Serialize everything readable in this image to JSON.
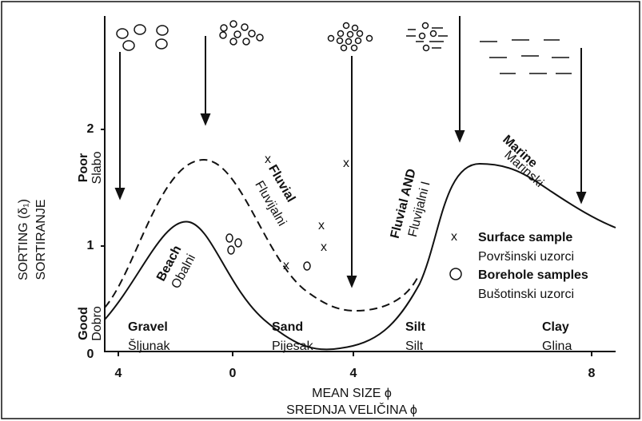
{
  "y_axis": {
    "title": "SORTING (δ₁)",
    "title2": "SORTIRANJE",
    "ticks": [
      "2",
      "1",
      "0"
    ],
    "poor": "Poor",
    "poor2": "Slabo",
    "good": "Good",
    "good2": "Dobro"
  },
  "x_axis": {
    "ticks": [
      "4",
      "0",
      "4",
      "8"
    ],
    "title": "MEAN SIZE ϕ",
    "title2": "SREDNJA VELIČINA ϕ"
  },
  "classes": [
    {
      "name": "Gravel",
      "local": "Šljunak"
    },
    {
      "name": "Sand",
      "local": "Pijesak"
    },
    {
      "name": "Silt",
      "local": "Silt"
    },
    {
      "name": "Clay",
      "local": "Glina"
    }
  ],
  "curves": [
    {
      "name": "Beach",
      "local": "Obalni"
    },
    {
      "name": "Fluvial",
      "local": "Fluvijalni"
    },
    {
      "name": "Fluvial AND",
      "local": "Fluvijalni I"
    },
    {
      "name": "Marine",
      "local": "Marinski"
    }
  ],
  "legend": [
    {
      "symbol": "x",
      "name": "Surface sample",
      "local": "Površinski uzorci"
    },
    {
      "name": "Borehole samples",
      "local": "Bušotinski uzorci"
    }
  ]
}
